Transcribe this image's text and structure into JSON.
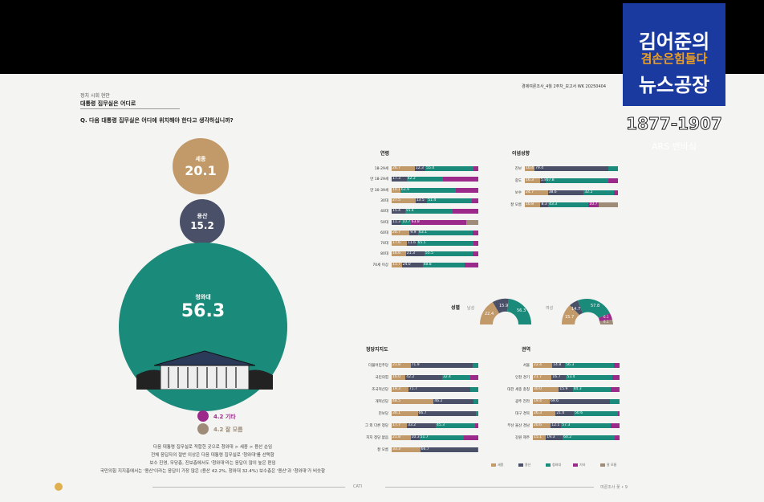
{
  "overlay": {
    "title_line1": "김어준의",
    "title_mid": "겸손은힘들다",
    "title_line2": "뉴스공장",
    "years": "1877-1907",
    "ars": "ARS 밴바싴"
  },
  "left": {
    "section_label": "정치 시회 현안",
    "section_title": "대통령 집무실은 어디로",
    "question": "Q. 다음 대통령 집무실은 어디에 위치해야 한다고 생각하십니까?",
    "bubbles": {
      "sejong": {
        "label": "세종",
        "value": "20.1"
      },
      "yongsan": {
        "label": "용산",
        "value": "15.2"
      },
      "cheong": {
        "label": "청와대",
        "value": "56.3"
      },
      "etc": {
        "label": "4.2 기타"
      },
      "none": {
        "label": "4.2 잘 모름"
      }
    },
    "note_lines": [
      "다음 대통령 집무실로 적합한 곳으로 청와대 > 세종 > 용산 순임",
      "전체 응답자의 절반 이상은 다음 대통령 집무실로 '청와대'를 선택함",
      "보수 진영, 무당층, 진보층에서도 '청와대'라는 응답이 많이 높은 편임",
      "국민의힘 지지층에서는 '용산'이라는 응답이 가장 많은 (용산 42.2%, 청와대 32.4%) 보수층은 '용산'과 '청와대'가 비슷함"
    ]
  },
  "right": {
    "header": "경제여론조사_4월 2주차_보고서   WK 20250404",
    "footer_left": "CATI",
    "footer_right": "여론조사 꽃 • 9",
    "sections": {
      "demo": "연령",
      "ideology": "이념성향",
      "party": "정당지지도",
      "region": "권역",
      "gender": "성별"
    },
    "gender_labels": {
      "male": "남성",
      "female": "여성"
    },
    "gender_male": [
      "22.4",
      "15.9",
      "56.3"
    ],
    "gender_female": [
      "14.7",
      "57.8",
      "15.7",
      "6.1",
      "6.1"
    ],
    "age_rows": [
      {
        "label": "18-29세",
        "vals": [
          "26.7",
          "12.3",
          "55.4"
        ]
      },
      {
        "label": "만 18-29세",
        "vals": [
          "",
          "17.3",
          "42.2"
        ]
      },
      {
        "label": "만 30-39세",
        "vals": [
          "10.1",
          "",
          "63.9"
        ]
      },
      {
        "label": "30대",
        "vals": [
          "27.5",
          "13.5",
          "51.4"
        ]
      },
      {
        "label": "40대",
        "vals": [
          "",
          "15.4",
          "55.4"
        ]
      },
      {
        "label": "50대",
        "vals": [
          "",
          "11.3",
          "10.7",
          "63.8"
        ]
      },
      {
        "label": "60대",
        "vals": [
          "20.7",
          "9.9",
          "63.1"
        ]
      },
      {
        "label": "70대",
        "vals": [
          "17.6",
          "11.6",
          "65.5"
        ]
      },
      {
        "label": "80대",
        "vals": [
          "16.6",
          "21.3",
          "55.5"
        ]
      },
      {
        "label": "70세 이상",
        "vals": [
          "11.7",
          "24.0",
          "48.8"
        ]
      }
    ],
    "ideology_rows": [
      {
        "label": "진보",
        "vals": [
          "10.4",
          "79.4"
        ]
      },
      {
        "label": "중도",
        "vals": [
          "16.3",
          "5.8",
          "67.8"
        ]
      },
      {
        "label": "보수",
        "vals": [
          "24.7",
          "38.6",
          "32.2"
        ]
      },
      {
        "label": "잘 모름",
        "vals": [
          "16.8",
          "8.3",
          "43.3",
          "10.7"
        ]
      }
    ],
    "party_rows": [
      {
        "label": "더불어민주당",
        "vals": [
          "21.8",
          "71.9"
        ]
      },
      {
        "label": "국민의힘",
        "vals": [
          "16.0",
          "42.2",
          "32.4"
        ]
      },
      {
        "label": "조국혁신당",
        "vals": [
          "19.3",
          "71.7"
        ]
      },
      {
        "label": "개혁신당",
        "vals": [
          "48.5",
          "46.2"
        ]
      },
      {
        "label": "진보당",
        "vals": [
          "30.1",
          "66.7"
        ]
      },
      {
        "label": "그 외 다른 정당",
        "vals": [
          "17.7",
          "33.2",
          "45.3"
        ]
      },
      {
        "label": "지지 정당 없음",
        "vals": [
          "21.8",
          "10.3",
          "51.7"
        ]
      },
      {
        "label": "잘 모름",
        "vals": [
          "33.3",
          "66.7"
        ]
      }
    ],
    "region_rows": [
      {
        "label": "서울",
        "vals": [
          "22.4",
          "14.8",
          "56.3"
        ]
      },
      {
        "label": "인천 경기",
        "vals": [
          "21.7",
          "16.7",
          "53.4"
        ]
      },
      {
        "label": "대전 세종 충청",
        "vals": [
          "30.0",
          "15.9",
          "44.3"
        ]
      },
      {
        "label": "광주 전라",
        "vals": [
          "19.4",
          "69.6"
        ]
      },
      {
        "label": "대구 경북",
        "vals": [
          "26.3",
          "21.0",
          "50.6"
        ]
      },
      {
        "label": "부산 울산 경남",
        "vals": [
          "20.6",
          "12.1",
          "57.3"
        ]
      },
      {
        "label": "강원 제주",
        "vals": [
          "15.1",
          "19.3",
          "60.2"
        ]
      }
    ],
    "legend": [
      "세종",
      "용산",
      "청와대",
      "기타",
      "잘 모름"
    ]
  },
  "colors": {
    "sejong": "#c29a6a",
    "yongsan": "#4a5068",
    "cheong": "#1a8a7a",
    "etc": "#9b2a8a",
    "none": "#9e8b78",
    "badge_blue": "#1b3aa0"
  }
}
